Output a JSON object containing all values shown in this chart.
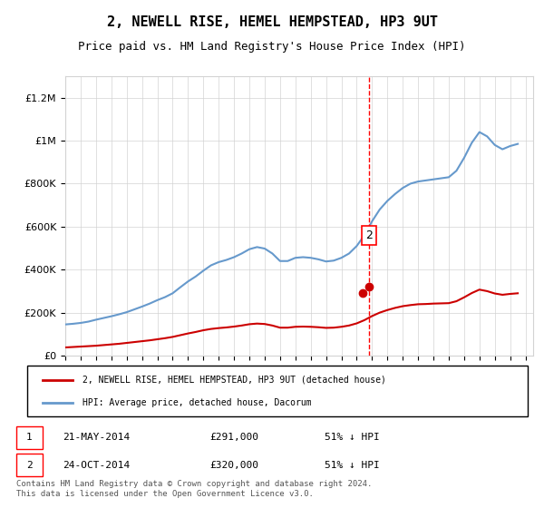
{
  "title": "2, NEWELL RISE, HEMEL HEMPSTEAD, HP3 9UT",
  "subtitle": "Price paid vs. HM Land Registry's House Price Index (HPI)",
  "hpi_color": "#6699cc",
  "price_color": "#cc0000",
  "legend_hpi": "HPI: Average price, detached house, Dacorum",
  "legend_price": "2, NEWELL RISE, HEMEL HEMPSTEAD, HP3 9UT (detached house)",
  "footnote": "Contains HM Land Registry data © Crown copyright and database right 2024.\nThis data is licensed under the Open Government Licence v3.0.",
  "sale1_label": "1",
  "sale1_date": "21-MAY-2014",
  "sale1_price": "£291,000",
  "sale1_hpi": "51% ↓ HPI",
  "sale2_label": "2",
  "sale2_date": "24-OCT-2014",
  "sale2_price": "£320,000",
  "sale2_hpi": "51% ↓ HPI",
  "ylim": [
    0,
    1300000
  ],
  "yticks": [
    0,
    200000,
    400000,
    600000,
    800000,
    1000000,
    1200000
  ],
  "xlim_start": 1995.0,
  "xlim_end": 2025.5,
  "sale1_x": 2014.38,
  "sale1_y": 291000,
  "sale2_x": 2014.81,
  "sale2_y": 320000,
  "vline_x": 2014.81,
  "hpi_years": [
    1995.0,
    1995.5,
    1996.0,
    1996.5,
    1997.0,
    1997.5,
    1998.0,
    1998.5,
    1999.0,
    1999.5,
    2000.0,
    2000.5,
    2001.0,
    2001.5,
    2002.0,
    2002.5,
    2003.0,
    2003.5,
    2004.0,
    2004.5,
    2005.0,
    2005.5,
    2006.0,
    2006.5,
    2007.0,
    2007.5,
    2008.0,
    2008.5,
    2009.0,
    2009.5,
    2010.0,
    2010.5,
    2011.0,
    2011.5,
    2012.0,
    2012.5,
    2013.0,
    2013.5,
    2014.0,
    2014.5,
    2015.0,
    2015.5,
    2016.0,
    2016.5,
    2017.0,
    2017.5,
    2018.0,
    2018.5,
    2019.0,
    2019.5,
    2020.0,
    2020.5,
    2021.0,
    2021.5,
    2022.0,
    2022.5,
    2023.0,
    2023.5,
    2024.0,
    2024.5
  ],
  "hpi_values": [
    145000,
    148000,
    152000,
    158000,
    167000,
    175000,
    183000,
    192000,
    202000,
    215000,
    228000,
    242000,
    258000,
    272000,
    290000,
    318000,
    345000,
    368000,
    395000,
    420000,
    435000,
    445000,
    458000,
    475000,
    495000,
    505000,
    498000,
    475000,
    440000,
    440000,
    455000,
    458000,
    455000,
    448000,
    438000,
    442000,
    455000,
    475000,
    510000,
    560000,
    625000,
    680000,
    720000,
    752000,
    780000,
    800000,
    810000,
    815000,
    820000,
    825000,
    830000,
    860000,
    920000,
    990000,
    1040000,
    1020000,
    980000,
    960000,
    975000,
    985000
  ],
  "price_years": [
    1995.0,
    1995.5,
    1996.0,
    1996.5,
    1997.0,
    1997.5,
    1998.0,
    1998.5,
    1999.0,
    1999.5,
    2000.0,
    2000.5,
    2001.0,
    2001.5,
    2002.0,
    2002.5,
    2003.0,
    2003.5,
    2004.0,
    2004.5,
    2005.0,
    2005.5,
    2006.0,
    2006.5,
    2007.0,
    2007.5,
    2008.0,
    2008.5,
    2009.0,
    2009.5,
    2010.0,
    2010.5,
    2011.0,
    2011.5,
    2012.0,
    2012.5,
    2013.0,
    2013.5,
    2014.0,
    2014.5,
    2015.0,
    2015.5,
    2016.0,
    2016.5,
    2017.0,
    2017.5,
    2018.0,
    2018.5,
    2019.0,
    2019.5,
    2020.0,
    2020.5,
    2021.0,
    2021.5,
    2022.0,
    2022.5,
    2023.0,
    2023.5,
    2024.0,
    2024.5
  ],
  "price_values": [
    38000,
    40000,
    42000,
    44000,
    46000,
    49000,
    52000,
    55000,
    59000,
    63000,
    67000,
    71000,
    76000,
    81000,
    87000,
    95000,
    103000,
    110000,
    118000,
    124000,
    128000,
    131000,
    135000,
    140000,
    146000,
    149000,
    147000,
    140000,
    130000,
    130000,
    134000,
    135000,
    134000,
    132000,
    129000,
    130000,
    134000,
    140000,
    150000,
    165000,
    184000,
    200000,
    212000,
    222000,
    230000,
    235000,
    239000,
    240000,
    242000,
    243000,
    244000,
    253000,
    271000,
    291000,
    307000,
    300000,
    289000,
    283000,
    287000,
    290000
  ]
}
